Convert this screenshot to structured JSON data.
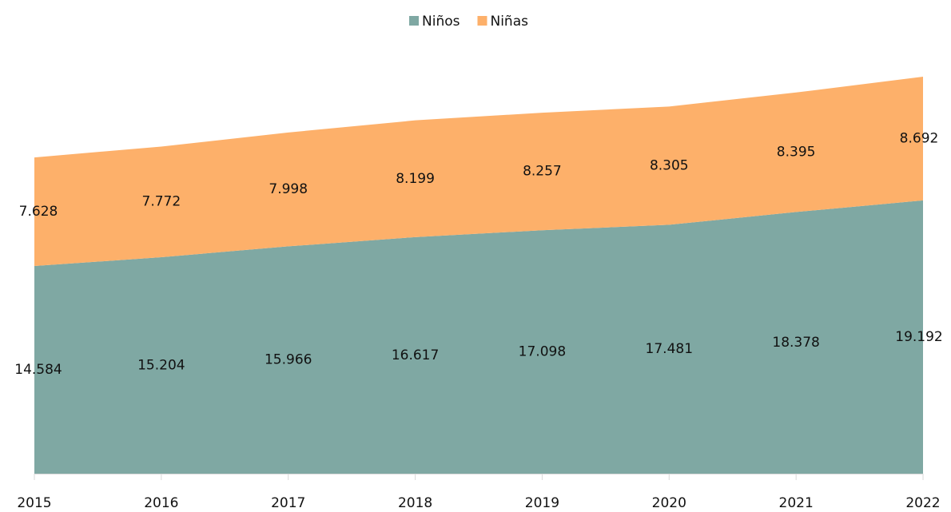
{
  "chart_data": {
    "type": "area",
    "stacked": true,
    "categories": [
      "2015",
      "2016",
      "2017",
      "2018",
      "2019",
      "2020",
      "2021",
      "2022"
    ],
    "series": [
      {
        "name": "Niños",
        "color": "#7fa8a3",
        "values": [
          14584,
          15204,
          15966,
          16617,
          17098,
          17481,
          18378,
          19192
        ],
        "value_labels": [
          "14.584",
          "15.204",
          "15.966",
          "16.617",
          "17.098",
          "17.481",
          "18.378",
          "19.192"
        ]
      },
      {
        "name": "Niñas",
        "color": "#fdb06a",
        "values": [
          7628,
          7772,
          7998,
          8199,
          8257,
          8305,
          8395,
          8692
        ],
        "value_labels": [
          "7.628",
          "7.772",
          "7.998",
          "8.199",
          "8.257",
          "8.305",
          "8.395",
          "8.692"
        ]
      }
    ],
    "legend": "top"
  }
}
